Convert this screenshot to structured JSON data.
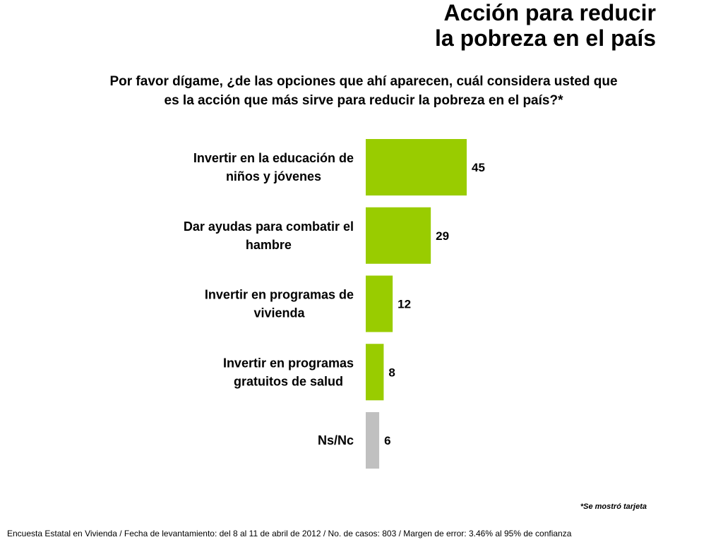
{
  "title_line1": "Acción para reducir",
  "title_line2": "la pobreza en el país",
  "question_line1": "Por favor dígame, ¿de las opciones que ahí aparecen, cuál considera usted que",
  "question_line2": "es la acción que más sirve para reducir la pobreza en el país?*",
  "note": "*Se mostró tarjeta",
  "footer": "Encuesta Estatal en Vivienda / Fecha de levantamiento: del  8 al 11 de abril de 2012 / No. de casos: 803 / Margen de error: 3.46% al 95% de confianza",
  "colors": {
    "primary_bar": "#99cc00",
    "nsnc_bar": "#c0c0c0"
  },
  "chart_data": {
    "type": "bar",
    "orientation": "horizontal",
    "categories": [
      [
        "Invertir en la educación de",
        "niños y jóvenes"
      ],
      [
        "Dar ayudas para combatir el",
        "hambre"
      ],
      [
        "Invertir en programas de",
        "vivienda"
      ],
      [
        "Invertir en programas",
        "gratuitos de salud"
      ],
      [
        "Ns/Nc"
      ]
    ],
    "values": [
      45,
      29,
      12,
      8,
      6
    ],
    "bar_colors": [
      "#99cc00",
      "#99cc00",
      "#99cc00",
      "#99cc00",
      "#c0c0c0"
    ],
    "xlim": [
      0,
      50
    ],
    "grid": false
  }
}
